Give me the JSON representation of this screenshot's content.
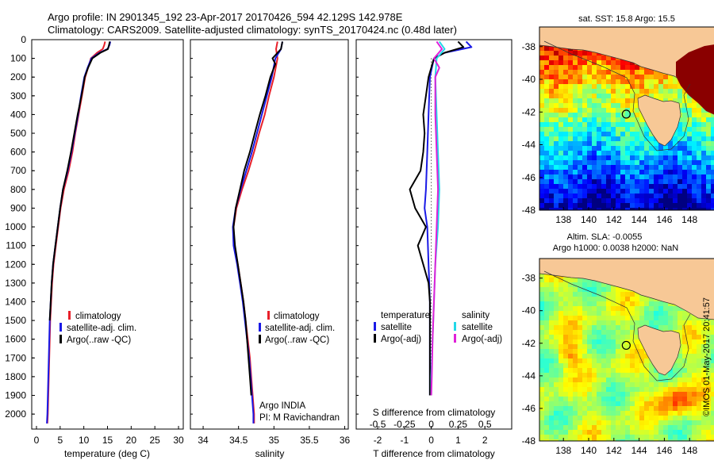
{
  "header": {
    "title_line1": "Argo profile: IN 2901345_192 23-Apr-2017 20170426_594 42.129S 142.978E",
    "title_line2": "Climatology: CARS2009. Satellite-adjusted climatology: synTS_20170424.nc (0.48d later)"
  },
  "colors": {
    "climatology": "#e8202a",
    "satellite": "#1a1ae6",
    "argo": "#000000",
    "satellite_salinity": "#22d8e8",
    "argo_salinity": "#e020d8",
    "land": "#f7c896"
  },
  "depth_ticks": [
    0,
    100,
    200,
    300,
    400,
    500,
    600,
    700,
    800,
    900,
    1000,
    1100,
    1200,
    1300,
    1400,
    1500,
    1600,
    1700,
    1800,
    1900,
    2000
  ],
  "chart_data": [
    {
      "type": "line",
      "id": "temperature",
      "xlabel": "temperature (deg C)",
      "x_ticks": [
        0,
        5,
        10,
        15,
        20,
        25,
        30
      ],
      "xlim": [
        -1,
        31
      ],
      "ylim": [
        0,
        2080
      ],
      "y_inverted": true,
      "legend": [
        "climatology",
        "satellite-adj. clim.",
        "Argo(..raw -QC)"
      ],
      "series": [
        {
          "name": "climatology",
          "color": "#e8202a",
          "points": [
            [
              14.5,
              10
            ],
            [
              14.3,
              30
            ],
            [
              14.0,
              50
            ],
            [
              12.8,
              70
            ],
            [
              11.5,
              100
            ],
            [
              10.9,
              150
            ],
            [
              10.3,
              200
            ],
            [
              9.6,
              300
            ],
            [
              8.9,
              400
            ],
            [
              8.2,
              500
            ],
            [
              7.6,
              600
            ],
            [
              6.8,
              700
            ],
            [
              5.8,
              800
            ],
            [
              5.1,
              900
            ],
            [
              4.6,
              1000
            ],
            [
              4.1,
              1100
            ],
            [
              3.6,
              1200
            ],
            [
              3.3,
              1300
            ],
            [
              3.1,
              1400
            ],
            [
              2.9,
              1500
            ],
            [
              2.8,
              1600
            ],
            [
              2.7,
              1700
            ],
            [
              2.6,
              1800
            ],
            [
              2.5,
              1900
            ],
            [
              2.4,
              2000
            ],
            [
              2.3,
              2050
            ]
          ]
        },
        {
          "name": "satellite-adj. clim.",
          "color": "#1a1ae6",
          "points": [
            [
              15.6,
              10
            ],
            [
              15.4,
              30
            ],
            [
              15.0,
              50
            ],
            [
              13.3,
              70
            ],
            [
              11.6,
              100
            ],
            [
              10.8,
              150
            ],
            [
              10.1,
              200
            ],
            [
              9.4,
              300
            ],
            [
              8.8,
              400
            ],
            [
              8.1,
              500
            ],
            [
              7.4,
              600
            ],
            [
              6.6,
              700
            ],
            [
              5.6,
              800
            ],
            [
              5.0,
              900
            ],
            [
              4.5,
              1000
            ],
            [
              4.0,
              1100
            ],
            [
              3.5,
              1200
            ],
            [
              3.2,
              1300
            ],
            [
              3.0,
              1400
            ],
            [
              2.8,
              1500
            ],
            [
              2.7,
              1600
            ],
            [
              2.6,
              1700
            ],
            [
              2.5,
              1800
            ],
            [
              2.4,
              1900
            ],
            [
              2.3,
              2000
            ],
            [
              2.2,
              2050
            ]
          ]
        },
        {
          "name": "Argo(..raw -QC)",
          "color": "#000000",
          "points": [
            [
              15.5,
              10
            ],
            [
              15.3,
              30
            ],
            [
              15.1,
              50
            ],
            [
              13.5,
              70
            ],
            [
              11.8,
              100
            ],
            [
              10.9,
              150
            ],
            [
              10.2,
              200
            ],
            [
              9.5,
              300
            ],
            [
              8.7,
              400
            ],
            [
              8.0,
              500
            ],
            [
              7.3,
              600
            ],
            [
              6.5,
              700
            ],
            [
              5.6,
              800
            ],
            [
              5.0,
              900
            ],
            [
              4.5,
              1000
            ],
            [
              4.0,
              1100
            ],
            [
              3.5,
              1200
            ],
            [
              3.2,
              1300
            ],
            [
              3.0,
              1400
            ],
            [
              2.8,
              1500
            ]
          ]
        }
      ]
    },
    {
      "type": "line",
      "id": "salinity",
      "xlabel": "salinity",
      "x_ticks": [
        34,
        34.5,
        35,
        35.5,
        36
      ],
      "xlim": [
        33.82,
        36.05
      ],
      "ylim": [
        0,
        2080
      ],
      "y_inverted": true,
      "legend": [
        "climatology",
        "satellite-adj. clim.",
        "Argo(..raw -QC)"
      ],
      "annotation_line1": "Argo INDIA",
      "annotation_line2": "PI: M Ravichandran",
      "series": [
        {
          "name": "climatology",
          "color": "#e8202a",
          "points": [
            [
              35.05,
              10
            ],
            [
              35.03,
              50
            ],
            [
              35.05,
              100
            ],
            [
              35.0,
              200
            ],
            [
              34.93,
              300
            ],
            [
              34.87,
              400
            ],
            [
              34.79,
              500
            ],
            [
              34.72,
              600
            ],
            [
              34.64,
              700
            ],
            [
              34.55,
              800
            ],
            [
              34.47,
              900
            ],
            [
              34.43,
              1000
            ],
            [
              34.44,
              1100
            ],
            [
              34.49,
              1200
            ],
            [
              34.53,
              1300
            ],
            [
              34.57,
              1400
            ],
            [
              34.6,
              1500
            ],
            [
              34.63,
              1600
            ],
            [
              34.66,
              1700
            ],
            [
              34.68,
              1800
            ],
            [
              34.7,
              1900
            ],
            [
              34.72,
              2000
            ],
            [
              34.72,
              2050
            ]
          ]
        },
        {
          "name": "satellite-adj. clim.",
          "color": "#1a1ae6",
          "points": [
            [
              35.12,
              10
            ],
            [
              35.1,
              50
            ],
            [
              35.02,
              100
            ],
            [
              34.97,
              200
            ],
            [
              34.9,
              300
            ],
            [
              34.83,
              400
            ],
            [
              34.76,
              500
            ],
            [
              34.69,
              600
            ],
            [
              34.61,
              700
            ],
            [
              34.53,
              800
            ],
            [
              34.46,
              900
            ],
            [
              34.42,
              1000
            ],
            [
              34.43,
              1100
            ],
            [
              34.48,
              1200
            ],
            [
              34.52,
              1300
            ],
            [
              34.56,
              1400
            ],
            [
              34.59,
              1500
            ],
            [
              34.62,
              1600
            ],
            [
              34.65,
              1700
            ],
            [
              34.67,
              1800
            ],
            [
              34.69,
              1900
            ],
            [
              34.71,
              2000
            ],
            [
              34.71,
              2050
            ]
          ]
        },
        {
          "name": "Argo(..raw -QC)",
          "color": "#000000",
          "points": [
            [
              35.12,
              10
            ],
            [
              35.1,
              50
            ],
            [
              34.98,
              100
            ],
            [
              35.02,
              130
            ],
            [
              34.95,
              200
            ],
            [
              34.88,
              300
            ],
            [
              34.8,
              400
            ],
            [
              34.73,
              500
            ],
            [
              34.66,
              600
            ],
            [
              34.58,
              700
            ],
            [
              34.52,
              800
            ],
            [
              34.46,
              900
            ],
            [
              34.43,
              1000
            ],
            [
              34.45,
              1100
            ],
            [
              34.49,
              1200
            ],
            [
              34.53,
              1300
            ],
            [
              34.57,
              1400
            ],
            [
              34.6,
              1500
            ],
            [
              34.62,
              1600
            ],
            [
              34.64,
              1700
            ],
            [
              34.66,
              1800
            ],
            [
              34.68,
              1900
            ]
          ]
        }
      ]
    },
    {
      "type": "line",
      "id": "difference",
      "xlabel": "T difference from climatology",
      "xlabel_top": "S difference from climatology",
      "x_ticks": [
        -2,
        -1,
        0,
        1,
        2
      ],
      "x_ticks_top_labels": [
        "-0.5",
        "-0.25",
        "0",
        "0.25",
        "0.5"
      ],
      "x_ticks_top_values": [
        -2,
        -1,
        0,
        1,
        2
      ],
      "xlim": [
        -2.8,
        3
      ],
      "ylim": [
        0,
        2080
      ],
      "y_inverted": true,
      "legend_temperature_title": "temperature",
      "legend_salinity_title": "salinity",
      "legend_temperature": [
        "satellite",
        "Argo(-adj)"
      ],
      "legend_salinity": [
        "satellite",
        "Argo(-adj)"
      ],
      "series": [
        {
          "name": "T satellite",
          "color": "#1a1ae6",
          "points": [
            [
              1.3,
              10
            ],
            [
              1.5,
              40
            ],
            [
              0.5,
              70
            ],
            [
              0.1,
              100
            ],
            [
              -0.05,
              200
            ],
            [
              -0.1,
              400
            ],
            [
              -0.15,
              600
            ],
            [
              -0.2,
              800
            ],
            [
              -0.25,
              900
            ],
            [
              -0.15,
              1000
            ],
            [
              -0.1,
              1200
            ],
            [
              -0.05,
              1400
            ],
            [
              -0.05,
              1600
            ],
            [
              -0.05,
              1800
            ],
            [
              -0.05,
              1900
            ]
          ]
        },
        {
          "name": "T Argo(-adj)",
          "color": "#000000",
          "points": [
            [
              1.0,
              10
            ],
            [
              1.2,
              40
            ],
            [
              0.5,
              70
            ],
            [
              0.1,
              100
            ],
            [
              -0.1,
              200
            ],
            [
              -0.2,
              300
            ],
            [
              -0.3,
              400
            ],
            [
              -0.25,
              500
            ],
            [
              -0.3,
              600
            ],
            [
              -0.4,
              700
            ],
            [
              -0.8,
              800
            ],
            [
              -0.6,
              900
            ],
            [
              -0.2,
              1000
            ],
            [
              -0.5,
              1100
            ],
            [
              -0.3,
              1200
            ],
            [
              -0.1,
              1300
            ],
            [
              -0.05,
              1400
            ],
            [
              -0.05,
              1600
            ],
            [
              -0.05,
              1800
            ],
            [
              -0.05,
              1900
            ]
          ]
        },
        {
          "name": "S satellite",
          "color": "#22d8e8",
          "points": [
            [
              0.3,
              10
            ],
            [
              0.5,
              50
            ],
            [
              0.2,
              100
            ],
            [
              0.15,
              200
            ],
            [
              0.2,
              400
            ],
            [
              0.25,
              600
            ],
            [
              0.3,
              800
            ],
            [
              0.25,
              1000
            ],
            [
              0.15,
              1200
            ],
            [
              0.1,
              1400
            ],
            [
              0.05,
              1600
            ],
            [
              0.0,
              1800
            ],
            [
              0.0,
              1900
            ]
          ]
        },
        {
          "name": "S Argo(-adj)",
          "color": "#e020d8",
          "points": [
            [
              0.2,
              10
            ],
            [
              0.4,
              50
            ],
            [
              0.1,
              100
            ],
            [
              0.3,
              150
            ],
            [
              0.15,
              200
            ],
            [
              0.15,
              400
            ],
            [
              0.2,
              600
            ],
            [
              0.25,
              800
            ],
            [
              0.2,
              1000
            ],
            [
              0.15,
              1200
            ],
            [
              0.1,
              1400
            ],
            [
              0.05,
              1600
            ],
            [
              0.02,
              1800
            ],
            [
              0.0,
              1900
            ]
          ]
        }
      ]
    },
    {
      "type": "heatmap",
      "id": "sst-map",
      "title": "sat. SST: 15.8  Argo: 15.5",
      "x_ticks": [
        138,
        140,
        142,
        144,
        146,
        148
      ],
      "y_ticks": [
        -38,
        -40,
        -42,
        -44,
        -46,
        -48
      ],
      "xlim": [
        136.1,
        150
      ],
      "ylim": [
        -48,
        -36.8
      ],
      "marker": {
        "lon": 142.978,
        "lat": -42.129
      }
    },
    {
      "type": "heatmap",
      "id": "sla-map",
      "title_line1": "Altim. SLA: -0.0055",
      "title_line2": "Argo h1000: 0.0038 h2000: NaN",
      "x_ticks": [
        138,
        140,
        142,
        144,
        146,
        148
      ],
      "y_ticks": [
        -38,
        -40,
        -42,
        -44,
        -46,
        -48
      ],
      "xlim": [
        136.1,
        150
      ],
      "ylim": [
        -48,
        -36.8
      ],
      "marker": {
        "lon": 142.978,
        "lat": -42.129
      }
    }
  ],
  "footer": {
    "credit": "©IMOS 01-May-2017 20:41:57"
  }
}
